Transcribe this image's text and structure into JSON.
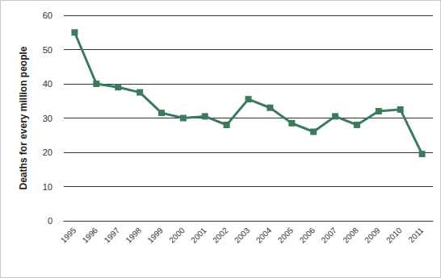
{
  "chart_data": {
    "type": "line",
    "y_label": "Deaths for every million people",
    "categories": [
      "1995",
      "1996",
      "1997",
      "1998",
      "1999",
      "2000",
      "2001",
      "2002",
      "2003",
      "2004",
      "2005",
      "2006",
      "2007",
      "2008",
      "2009",
      "2010",
      "2011"
    ],
    "values": [
      55,
      40,
      39,
      37.5,
      31.5,
      30,
      30.5,
      28,
      35.5,
      33,
      28.5,
      26,
      30.5,
      28,
      32,
      32.5,
      19.5
    ],
    "color": "#3b7a5c",
    "marker": "square",
    "ylim": [
      0,
      60
    ],
    "yticks": [
      0,
      10,
      20,
      30,
      40,
      50,
      60
    ],
    "grid": true
  }
}
